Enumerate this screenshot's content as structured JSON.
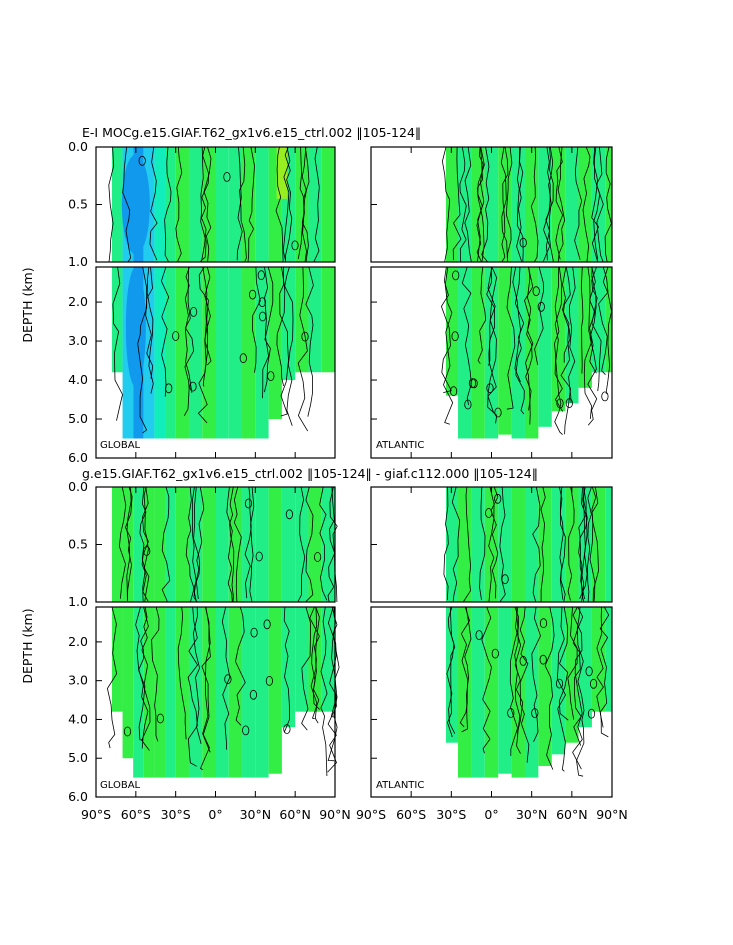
{
  "figure": {
    "title_top": "E-I MOCg.e15.GIAF.T62_gx1v6.e15_ctrl.002 ‖105-124‖",
    "title_bottom": "g.e15.GIAF.T62_gx1v6.e15_ctrl.002 ‖105-124‖ - giaf.c112.000 ‖105-124‖",
    "y_axis_label": "DEPTH (km)",
    "x_ticks": [
      "90°S",
      "60°S",
      "30°S",
      "0°",
      "30°N",
      "60°N",
      "90°N"
    ],
    "y_ticks_upper": [
      "0.0",
      "0.5",
      "1.0"
    ],
    "y_ticks_lower": [
      "2.0",
      "3.0",
      "4.0",
      "5.0",
      "6.0"
    ],
    "panel_labels": {
      "global": "GLOBAL",
      "atlantic": "ATLANTIC"
    },
    "colors": {
      "background": "#ffffff",
      "green": "#33ee44",
      "teal_green": "#22ee88",
      "cyan": "#11eebb",
      "light_blue": "#22ccee",
      "blue": "#1199ee",
      "yellow_green": "#99ee22",
      "contour": "#000000"
    }
  },
  "chart_data": [
    {
      "type": "heatmap",
      "title": "E-I MOCg.e15.GIAF.T62_gx1v6.e15_ctrl.002 ‖105-124‖",
      "panel": "GLOBAL",
      "ylabel": "DEPTH (km)",
      "xlim": [
        -90,
        90
      ],
      "ylim": [
        6.0,
        0.0
      ],
      "basin_start_lat": -78,
      "columns": [
        {
          "lat": -78,
          "bottom": 3.8,
          "level": 1
        },
        {
          "lat": -70,
          "bottom": 5.5,
          "level": 3
        },
        {
          "lat": -62,
          "bottom": 5.5,
          "level": 4
        },
        {
          "lat": -54,
          "bottom": 5.5,
          "level": 3
        },
        {
          "lat": -46,
          "bottom": 5.5,
          "level": 2
        },
        {
          "lat": -38,
          "bottom": 5.5,
          "level": 1
        },
        {
          "lat": -30,
          "bottom": 5.5,
          "level": 0
        },
        {
          "lat": -20,
          "bottom": 5.5,
          "level": 1
        },
        {
          "lat": -10,
          "bottom": 5.5,
          "level": 0
        },
        {
          "lat": 0,
          "bottom": 5.5,
          "level": 1
        },
        {
          "lat": 10,
          "bottom": 5.5,
          "level": 1
        },
        {
          "lat": 20,
          "bottom": 5.5,
          "level": 0
        },
        {
          "lat": 30,
          "bottom": 5.5,
          "level": 1
        },
        {
          "lat": 40,
          "bottom": 5.0,
          "level": 0
        },
        {
          "lat": 50,
          "bottom": 4.0,
          "level": 1
        },
        {
          "lat": 60,
          "bottom": 3.8,
          "level": 0
        },
        {
          "lat": 70,
          "bottom": 3.8,
          "level": 1
        },
        {
          "lat": 80,
          "bottom": 3.8,
          "level": 0
        }
      ]
    },
    {
      "type": "heatmap",
      "panel": "ATLANTIC",
      "xlim": [
        -90,
        90
      ],
      "ylim": [
        6.0,
        0.0
      ],
      "basin_start_lat": -34,
      "columns": [
        {
          "lat": -34,
          "bottom": 4.4,
          "level": 0
        },
        {
          "lat": -25,
          "bottom": 5.5,
          "level": 1
        },
        {
          "lat": -15,
          "bottom": 5.5,
          "level": 0
        },
        {
          "lat": -5,
          "bottom": 5.5,
          "level": 1
        },
        {
          "lat": 5,
          "bottom": 5.4,
          "level": 0
        },
        {
          "lat": 15,
          "bottom": 5.5,
          "level": 1
        },
        {
          "lat": 25,
          "bottom": 5.5,
          "level": 0
        },
        {
          "lat": 35,
          "bottom": 5.2,
          "level": 1
        },
        {
          "lat": 45,
          "bottom": 4.8,
          "level": 0
        },
        {
          "lat": 55,
          "bottom": 4.6,
          "level": 1
        },
        {
          "lat": 65,
          "bottom": 4.2,
          "level": 0
        },
        {
          "lat": 75,
          "bottom": 3.8,
          "level": 1
        },
        {
          "lat": 85,
          "bottom": 3.8,
          "level": 0
        }
      ]
    },
    {
      "type": "heatmap",
      "title": "g.e15.GIAF.T62_gx1v6.e15_ctrl.002 ‖105-124‖ - giaf.c112.000 ‖105-124‖",
      "panel": "GLOBAL",
      "ylabel": "DEPTH (km)",
      "xlim": [
        -90,
        90
      ],
      "ylim": [
        6.0,
        0.0
      ],
      "basin_start_lat": -78,
      "columns": [
        {
          "lat": -78,
          "bottom": 3.8,
          "level": 0
        },
        {
          "lat": -70,
          "bottom": 5.0,
          "level": 0
        },
        {
          "lat": -62,
          "bottom": 5.5,
          "level": 1
        },
        {
          "lat": -54,
          "bottom": 5.5,
          "level": 0
        },
        {
          "lat": -46,
          "bottom": 5.5,
          "level": 0
        },
        {
          "lat": -38,
          "bottom": 5.5,
          "level": 1
        },
        {
          "lat": -30,
          "bottom": 5.5,
          "level": 0
        },
        {
          "lat": -20,
          "bottom": 5.5,
          "level": 1
        },
        {
          "lat": -10,
          "bottom": 5.5,
          "level": 0
        },
        {
          "lat": 0,
          "bottom": 5.5,
          "level": 1
        },
        {
          "lat": 10,
          "bottom": 5.5,
          "level": 0
        },
        {
          "lat": 20,
          "bottom": 5.5,
          "level": 1
        },
        {
          "lat": 30,
          "bottom": 5.5,
          "level": 1
        },
        {
          "lat": 40,
          "bottom": 5.4,
          "level": 0
        },
        {
          "lat": 50,
          "bottom": 4.2,
          "level": 1
        },
        {
          "lat": 60,
          "bottom": 3.8,
          "level": 1
        },
        {
          "lat": 70,
          "bottom": 3.8,
          "level": 0
        },
        {
          "lat": 80,
          "bottom": 3.8,
          "level": 1
        }
      ]
    },
    {
      "type": "heatmap",
      "panel": "ATLANTIC",
      "xlim": [
        -90,
        90
      ],
      "ylim": [
        6.0,
        0.0
      ],
      "basin_start_lat": -34,
      "columns": [
        {
          "lat": -34,
          "bottom": 4.6,
          "level": 1
        },
        {
          "lat": -25,
          "bottom": 5.5,
          "level": 0
        },
        {
          "lat": -15,
          "bottom": 5.5,
          "level": 1
        },
        {
          "lat": -5,
          "bottom": 5.5,
          "level": 0
        },
        {
          "lat": 5,
          "bottom": 5.4,
          "level": 1
        },
        {
          "lat": 15,
          "bottom": 5.5,
          "level": 0
        },
        {
          "lat": 25,
          "bottom": 5.5,
          "level": 1
        },
        {
          "lat": 35,
          "bottom": 5.2,
          "level": 0
        },
        {
          "lat": 45,
          "bottom": 4.9,
          "level": 1
        },
        {
          "lat": 55,
          "bottom": 4.6,
          "level": 0
        },
        {
          "lat": 65,
          "bottom": 4.2,
          "level": 1
        },
        {
          "lat": 75,
          "bottom": 3.8,
          "level": 0
        },
        {
          "lat": 85,
          "bottom": 3.8,
          "level": 1
        }
      ]
    }
  ]
}
